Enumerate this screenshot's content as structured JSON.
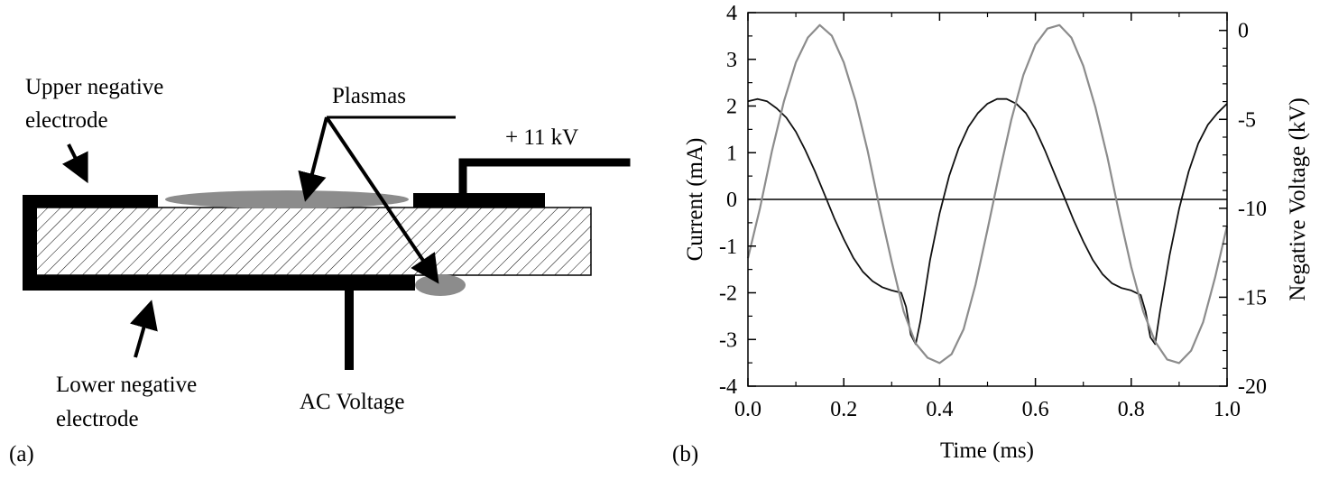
{
  "panel_a": {
    "label": "(a)",
    "upper_label_line1": "Upper negative",
    "upper_label_line2": "electrode",
    "plasmas_label": "Plasmas",
    "voltage_label": "+ 11 kV",
    "lower_label_line1": "Lower negative",
    "lower_label_line2": "electrode",
    "ac_label": "AC Voltage"
  },
  "panel_b": {
    "label": "(b)"
  },
  "chart_data": {
    "type": "line",
    "xlabel": "Time (ms)",
    "ylabel": "Current (mA)",
    "y2label": "Negative Voltage (kV)",
    "xlim": [
      0.0,
      1.0
    ],
    "ylim": [
      -4,
      4
    ],
    "y2lim": [
      -20,
      1
    ],
    "x_ticks": [
      "0.0",
      "0.2",
      "0.4",
      "0.6",
      "0.8",
      "1.0"
    ],
    "y_ticks": [
      "-4",
      "-3",
      "-2",
      "-1",
      "0",
      "1",
      "2",
      "3",
      "4"
    ],
    "y2_ticks": [
      "0",
      "-5",
      "-10",
      "-15",
      "-20"
    ],
    "zero_line": true,
    "series": [
      {
        "axis": "left",
        "color": "#111111",
        "x": [
          0.0,
          0.02,
          0.04,
          0.06,
          0.08,
          0.1,
          0.12,
          0.14,
          0.16,
          0.18,
          0.2,
          0.22,
          0.24,
          0.26,
          0.28,
          0.3,
          0.32,
          0.33,
          0.34,
          0.35,
          0.36,
          0.38,
          0.4,
          0.42,
          0.44,
          0.46,
          0.48,
          0.5,
          0.52,
          0.54,
          0.56,
          0.58,
          0.6,
          0.62,
          0.64,
          0.66,
          0.68,
          0.7,
          0.72,
          0.74,
          0.76,
          0.78,
          0.8,
          0.82,
          0.83,
          0.84,
          0.85,
          0.86,
          0.88,
          0.9,
          0.92,
          0.94,
          0.96,
          0.98,
          1.0
        ],
        "y": [
          2.1,
          2.15,
          2.1,
          1.95,
          1.75,
          1.45,
          1.05,
          0.6,
          0.1,
          -0.4,
          -0.85,
          -1.25,
          -1.55,
          -1.75,
          -1.88,
          -1.95,
          -2.0,
          -2.3,
          -2.9,
          -3.1,
          -2.6,
          -1.3,
          -0.3,
          0.5,
          1.1,
          1.55,
          1.85,
          2.05,
          2.15,
          2.15,
          2.05,
          1.85,
          1.5,
          1.05,
          0.55,
          0.05,
          -0.45,
          -0.9,
          -1.3,
          -1.6,
          -1.8,
          -1.9,
          -1.95,
          -2.05,
          -2.4,
          -2.95,
          -3.1,
          -2.4,
          -1.2,
          -0.2,
          0.6,
          1.2,
          1.6,
          1.85,
          2.05
        ]
      },
      {
        "axis": "right",
        "color": "#8c8c8c",
        "x": [
          0.0,
          0.025,
          0.05,
          0.075,
          0.1,
          0.125,
          0.15,
          0.175,
          0.2,
          0.225,
          0.25,
          0.275,
          0.3,
          0.325,
          0.35,
          0.375,
          0.4,
          0.425,
          0.45,
          0.475,
          0.5,
          0.525,
          0.55,
          0.575,
          0.6,
          0.625,
          0.65,
          0.675,
          0.7,
          0.725,
          0.75,
          0.775,
          0.8,
          0.825,
          0.85,
          0.875,
          0.9,
          0.925,
          0.95,
          0.975,
          1.0
        ],
        "y": [
          -12.8,
          -10.0,
          -6.8,
          -4.0,
          -1.8,
          -0.4,
          0.3,
          -0.3,
          -1.8,
          -4.0,
          -6.8,
          -10.0,
          -13.0,
          -15.8,
          -17.6,
          -18.4,
          -18.7,
          -18.2,
          -16.8,
          -14.3,
          -11.2,
          -8.0,
          -5.0,
          -2.5,
          -0.8,
          0.1,
          0.3,
          -0.4,
          -2.0,
          -4.3,
          -7.1,
          -10.3,
          -13.3,
          -15.8,
          -17.5,
          -18.5,
          -18.7,
          -18.0,
          -16.4,
          -13.9,
          -11.0
        ]
      }
    ]
  }
}
